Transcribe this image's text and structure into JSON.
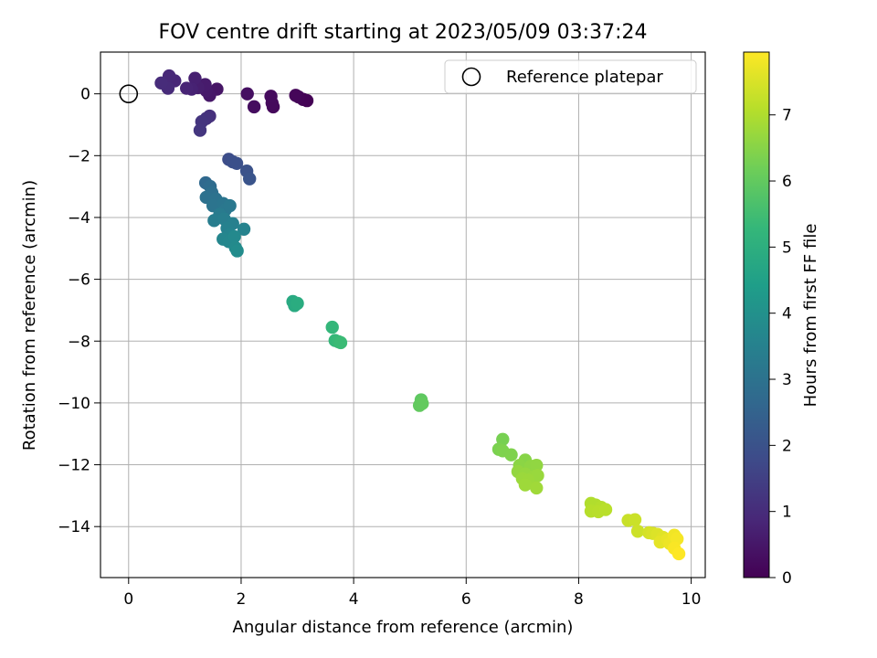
{
  "chart_data": {
    "type": "scatter",
    "title": "FOV centre drift starting at 2023/05/09 03:37:24",
    "xlabel": "Angular distance from reference (arcmin)",
    "ylabel": "Rotation from reference (arcmin)",
    "xlim": [
      -0.5,
      10.25
    ],
    "ylim": [
      -15.65,
      1.35
    ],
    "xticks": [
      0,
      2,
      4,
      6,
      8,
      10
    ],
    "yticks": [
      0,
      -2,
      -4,
      -6,
      -8,
      -10,
      -12,
      -14
    ],
    "grid": true,
    "legend": {
      "placement": "top-right",
      "entries": [
        "Reference platepar"
      ]
    },
    "reference": {
      "name": "Reference platepar",
      "x": 0,
      "y": 0
    },
    "colorbar": {
      "label": "Hours from first FF file",
      "colormap": "viridis",
      "range": [
        0,
        7.95
      ],
      "ticks": [
        0,
        1,
        2,
        3,
        4,
        5,
        6,
        7
      ],
      "stops": [
        "#440154",
        "#482878",
        "#3e4a89",
        "#31688e",
        "#26828e",
        "#1f9e89",
        "#35b779",
        "#6ece58",
        "#b5de2b",
        "#fde725"
      ]
    },
    "points": [
      {
        "x": 3.17,
        "y": -0.22,
        "h": 0.02
      },
      {
        "x": 3.1,
        "y": -0.18,
        "h": 0.05
      },
      {
        "x": 3.02,
        "y": -0.1,
        "h": 0.08
      },
      {
        "x": 2.97,
        "y": -0.05,
        "h": 0.12
      },
      {
        "x": 2.57,
        "y": -0.42,
        "h": 0.18
      },
      {
        "x": 2.55,
        "y": -0.3,
        "h": 0.2
      },
      {
        "x": 2.53,
        "y": -0.08,
        "h": 0.22
      },
      {
        "x": 2.23,
        "y": -0.42,
        "h": 0.28
      },
      {
        "x": 2.11,
        "y": 0.0,
        "h": 0.32
      },
      {
        "x": 1.57,
        "y": 0.15,
        "h": 0.45
      },
      {
        "x": 1.44,
        "y": -0.05,
        "h": 0.5
      },
      {
        "x": 1.38,
        "y": 0.1,
        "h": 0.55
      },
      {
        "x": 1.36,
        "y": 0.3,
        "h": 0.6
      },
      {
        "x": 1.23,
        "y": 0.2,
        "h": 0.65
      },
      {
        "x": 1.18,
        "y": 0.5,
        "h": 0.7
      },
      {
        "x": 1.12,
        "y": 0.15,
        "h": 0.75
      },
      {
        "x": 1.03,
        "y": 0.18,
        "h": 0.8
      },
      {
        "x": 0.82,
        "y": 0.42,
        "h": 0.85
      },
      {
        "x": 0.72,
        "y": 0.58,
        "h": 0.9
      },
      {
        "x": 0.7,
        "y": 0.18,
        "h": 0.95
      },
      {
        "x": 0.58,
        "y": 0.35,
        "h": 1.0
      },
      {
        "x": 1.44,
        "y": -0.72,
        "h": 1.1
      },
      {
        "x": 1.38,
        "y": -0.8,
        "h": 1.15
      },
      {
        "x": 1.3,
        "y": -0.9,
        "h": 1.2
      },
      {
        "x": 1.27,
        "y": -1.18,
        "h": 1.25
      },
      {
        "x": 1.78,
        "y": -2.12,
        "h": 1.85
      },
      {
        "x": 1.85,
        "y": -2.2,
        "h": 1.9
      },
      {
        "x": 1.92,
        "y": -2.25,
        "h": 1.95
      },
      {
        "x": 2.1,
        "y": -2.5,
        "h": 2.0
      },
      {
        "x": 2.15,
        "y": -2.75,
        "h": 2.05
      },
      {
        "x": 1.37,
        "y": -2.88,
        "h": 2.7
      },
      {
        "x": 1.45,
        "y": -3.0,
        "h": 2.8
      },
      {
        "x": 1.48,
        "y": -3.2,
        "h": 2.9
      },
      {
        "x": 1.38,
        "y": -3.35,
        "h": 2.95
      },
      {
        "x": 1.55,
        "y": -3.4,
        "h": 3.0
      },
      {
        "x": 1.5,
        "y": -3.62,
        "h": 3.05
      },
      {
        "x": 1.68,
        "y": -3.55,
        "h": 3.1
      },
      {
        "x": 1.72,
        "y": -3.75,
        "h": 3.15
      },
      {
        "x": 1.8,
        "y": -3.62,
        "h": 3.2
      },
      {
        "x": 1.62,
        "y": -3.9,
        "h": 3.3
      },
      {
        "x": 1.52,
        "y": -4.1,
        "h": 3.35
      },
      {
        "x": 1.7,
        "y": -4.05,
        "h": 3.4
      },
      {
        "x": 1.85,
        "y": -4.2,
        "h": 3.45
      },
      {
        "x": 1.75,
        "y": -4.35,
        "h": 3.5
      },
      {
        "x": 2.05,
        "y": -4.38,
        "h": 3.55
      },
      {
        "x": 1.8,
        "y": -4.55,
        "h": 3.6
      },
      {
        "x": 1.68,
        "y": -4.7,
        "h": 3.65
      },
      {
        "x": 1.78,
        "y": -4.78,
        "h": 3.7
      },
      {
        "x": 1.88,
        "y": -4.62,
        "h": 3.75
      },
      {
        "x": 1.9,
        "y": -4.98,
        "h": 3.8
      },
      {
        "x": 1.93,
        "y": -5.08,
        "h": 3.85
      },
      {
        "x": 2.92,
        "y": -6.72,
        "h": 4.8
      },
      {
        "x": 2.95,
        "y": -6.85,
        "h": 4.85
      },
      {
        "x": 3.0,
        "y": -6.78,
        "h": 4.9
      },
      {
        "x": 3.62,
        "y": -7.55,
        "h": 5.25
      },
      {
        "x": 3.67,
        "y": -7.98,
        "h": 5.3
      },
      {
        "x": 3.73,
        "y": -8.02,
        "h": 5.35
      },
      {
        "x": 3.77,
        "y": -8.05,
        "h": 5.4
      },
      {
        "x": 5.2,
        "y": -9.9,
        "h": 5.95
      },
      {
        "x": 5.17,
        "y": -10.08,
        "h": 6.0
      },
      {
        "x": 5.22,
        "y": -10.02,
        "h": 6.02
      },
      {
        "x": 6.65,
        "y": -11.18,
        "h": 6.3
      },
      {
        "x": 6.58,
        "y": -11.5,
        "h": 6.35
      },
      {
        "x": 6.65,
        "y": -11.55,
        "h": 6.38
      },
      {
        "x": 6.8,
        "y": -11.68,
        "h": 6.4
      },
      {
        "x": 7.05,
        "y": -11.85,
        "h": 6.5
      },
      {
        "x": 6.95,
        "y": -12.02,
        "h": 6.55
      },
      {
        "x": 7.15,
        "y": -12.05,
        "h": 6.6
      },
      {
        "x": 7.25,
        "y": -12.02,
        "h": 6.62
      },
      {
        "x": 6.92,
        "y": -12.22,
        "h": 6.65
      },
      {
        "x": 7.05,
        "y": -12.3,
        "h": 6.68
      },
      {
        "x": 7.2,
        "y": -12.38,
        "h": 6.7
      },
      {
        "x": 7.27,
        "y": -12.35,
        "h": 6.72
      },
      {
        "x": 7.0,
        "y": -12.45,
        "h": 6.74
      },
      {
        "x": 7.1,
        "y": -12.5,
        "h": 6.76
      },
      {
        "x": 7.05,
        "y": -12.65,
        "h": 6.78
      },
      {
        "x": 7.25,
        "y": -12.75,
        "h": 6.8
      },
      {
        "x": 8.22,
        "y": -13.25,
        "h": 7.0
      },
      {
        "x": 8.3,
        "y": -13.3,
        "h": 7.02
      },
      {
        "x": 8.4,
        "y": -13.38,
        "h": 7.05
      },
      {
        "x": 8.22,
        "y": -13.5,
        "h": 7.08
      },
      {
        "x": 8.35,
        "y": -13.52,
        "h": 7.1
      },
      {
        "x": 8.48,
        "y": -13.45,
        "h": 7.12
      },
      {
        "x": 8.88,
        "y": -13.8,
        "h": 7.3
      },
      {
        "x": 9.0,
        "y": -13.78,
        "h": 7.32
      },
      {
        "x": 9.05,
        "y": -14.15,
        "h": 7.35
      },
      {
        "x": 9.25,
        "y": -14.2,
        "h": 7.45
      },
      {
        "x": 9.32,
        "y": -14.22,
        "h": 7.5
      },
      {
        "x": 9.4,
        "y": -14.25,
        "h": 7.55
      },
      {
        "x": 9.5,
        "y": -14.35,
        "h": 7.6
      },
      {
        "x": 9.45,
        "y": -14.5,
        "h": 7.65
      },
      {
        "x": 9.58,
        "y": -14.42,
        "h": 7.7
      },
      {
        "x": 9.62,
        "y": -14.55,
        "h": 7.75
      },
      {
        "x": 9.7,
        "y": -14.28,
        "h": 7.8
      },
      {
        "x": 9.75,
        "y": -14.4,
        "h": 7.85
      },
      {
        "x": 9.7,
        "y": -14.7,
        "h": 7.9
      },
      {
        "x": 9.78,
        "y": -14.88,
        "h": 7.95
      }
    ]
  }
}
